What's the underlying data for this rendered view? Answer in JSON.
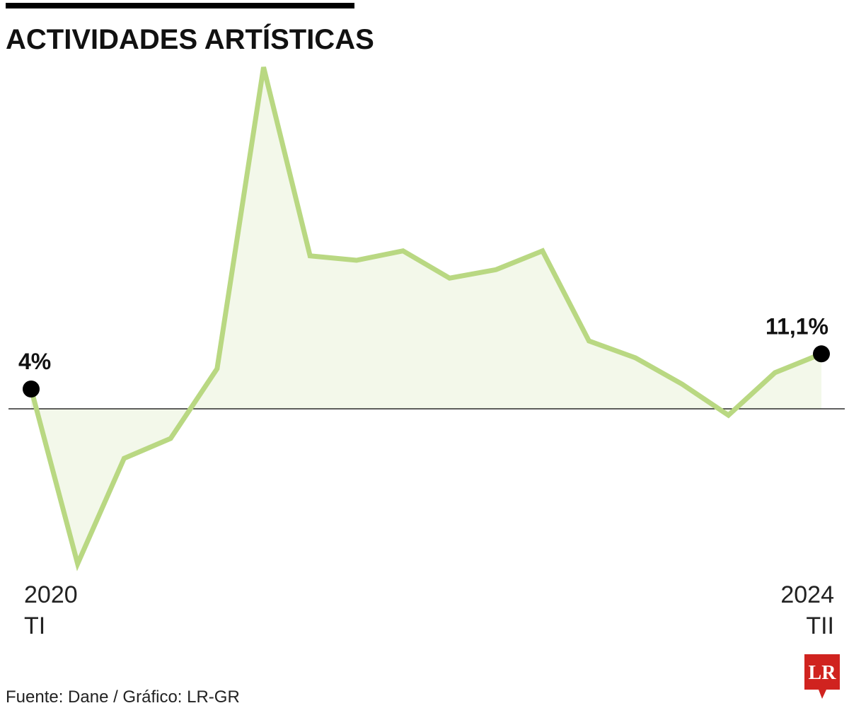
{
  "chart_data": {
    "type": "line",
    "title": "ACTIVIDADES ARTÍSTICAS",
    "categories": [
      [
        "2020",
        "TI"
      ],
      null,
      null,
      null,
      null,
      null,
      null,
      null,
      null,
      null,
      null,
      null,
      null,
      null,
      null,
      null,
      null,
      [
        "2024",
        "TII"
      ]
    ],
    "series": [
      {
        "color": "#b9d882",
        "values": [
          4,
          -31.3,
          -10,
          -6,
          8.1,
          69,
          30.9,
          30,
          31.9,
          26.4,
          28.1,
          31.9,
          13.7,
          10.3,
          5,
          -1.3,
          7.3,
          11.1
        ],
        "value_labels": [
          "4%",
          null,
          null,
          null,
          null,
          null,
          null,
          null,
          null,
          null,
          null,
          null,
          null,
          null,
          null,
          null,
          null,
          "11,1%"
        ]
      }
    ],
    "ylim": [
      -36,
      74
    ],
    "source": "Fuente: Dane / Gráfico: LR-GR",
    "logo": "LR"
  }
}
